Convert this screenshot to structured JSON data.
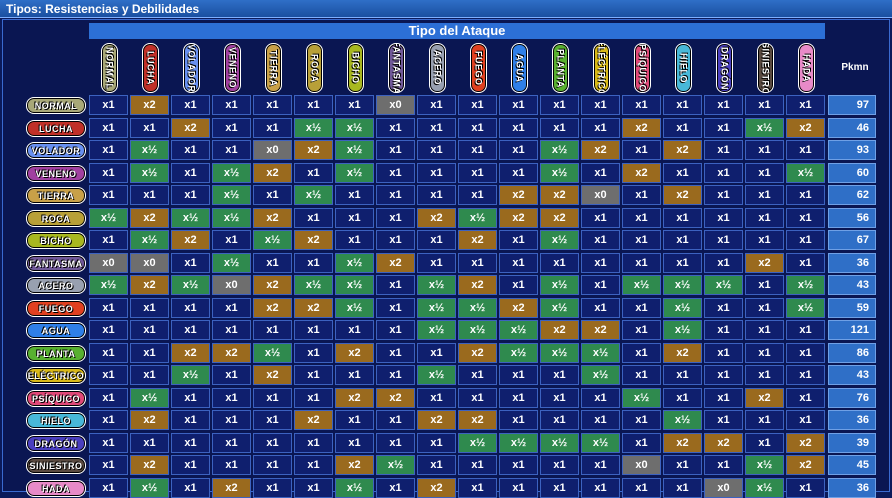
{
  "window": {
    "title": "Tipos: Resistencias y Debilidades"
  },
  "attack_header": "Tipo del Ataque",
  "pkmn_header": "Pkmn",
  "colors": {
    "x2": "#9a6a1e",
    "half": "#2f8a4e",
    "x0": "#6e6e6e",
    "x1": "#0f1f6e"
  },
  "types": [
    {
      "name": "NORMAL",
      "color": "#a8a878"
    },
    {
      "name": "LUCHA",
      "color": "#c03028"
    },
    {
      "name": "VOLADOR",
      "color": "#6890f0"
    },
    {
      "name": "VENENO",
      "color": "#a040a0"
    },
    {
      "name": "TIERRA",
      "color": "#c8a048"
    },
    {
      "name": "ROCA",
      "color": "#b8a038"
    },
    {
      "name": "BICHO",
      "color": "#a8b820"
    },
    {
      "name": "FANTASMA",
      "color": "#705898"
    },
    {
      "name": "ACERO",
      "color": "#98a0b0"
    },
    {
      "name": "FUEGO",
      "color": "#e04020"
    },
    {
      "name": "AGUA",
      "color": "#2f7fe8"
    },
    {
      "name": "PLANTA",
      "color": "#58b030"
    },
    {
      "name": "ELÉCTRICO",
      "color": "#d8b818"
    },
    {
      "name": "PSÍQUICO",
      "color": "#e04878"
    },
    {
      "name": "HIELO",
      "color": "#48b8d8"
    },
    {
      "name": "DRAGÓN",
      "color": "#4a3fbf"
    },
    {
      "name": "SINIESTRO",
      "color": "#5a4a40"
    },
    {
      "name": "HADA",
      "color": "#e88ac8"
    }
  ],
  "rows": [
    {
      "type": "NORMAL",
      "values": [
        "x1",
        "x2",
        "x1",
        "x1",
        "x1",
        "x1",
        "x1",
        "x0",
        "x1",
        "x1",
        "x1",
        "x1",
        "x1",
        "x1",
        "x1",
        "x1",
        "x1",
        "x1"
      ],
      "pkmn": "97"
    },
    {
      "type": "LUCHA",
      "values": [
        "x1",
        "x1",
        "x2",
        "x1",
        "x1",
        "x½",
        "x½",
        "x1",
        "x1",
        "x1",
        "x1",
        "x1",
        "x1",
        "x2",
        "x1",
        "x1",
        "x½",
        "x2"
      ],
      "pkmn": "46"
    },
    {
      "type": "VOLADOR",
      "values": [
        "x1",
        "x½",
        "x1",
        "x1",
        "x0",
        "x2",
        "x½",
        "x1",
        "x1",
        "x1",
        "x1",
        "x½",
        "x2",
        "x1",
        "x2",
        "x1",
        "x1",
        "x1"
      ],
      "pkmn": "93"
    },
    {
      "type": "VENENO",
      "values": [
        "x1",
        "x½",
        "x1",
        "x½",
        "x2",
        "x1",
        "x½",
        "x1",
        "x1",
        "x1",
        "x1",
        "x½",
        "x1",
        "x2",
        "x1",
        "x1",
        "x1",
        "x½"
      ],
      "pkmn": "60"
    },
    {
      "type": "TIERRA",
      "values": [
        "x1",
        "x1",
        "x1",
        "x½",
        "x1",
        "x½",
        "x1",
        "x1",
        "x1",
        "x1",
        "x2",
        "x2",
        "x0",
        "x1",
        "x2",
        "x1",
        "x1",
        "x1"
      ],
      "pkmn": "62"
    },
    {
      "type": "ROCA",
      "values": [
        "x½",
        "x2",
        "x½",
        "x½",
        "x2",
        "x1",
        "x1",
        "x1",
        "x2",
        "x½",
        "x2",
        "x2",
        "x1",
        "x1",
        "x1",
        "x1",
        "x1",
        "x1"
      ],
      "pkmn": "56"
    },
    {
      "type": "BICHO",
      "values": [
        "x1",
        "x½",
        "x2",
        "x1",
        "x½",
        "x2",
        "x1",
        "x1",
        "x1",
        "x2",
        "x1",
        "x½",
        "x1",
        "x1",
        "x1",
        "x1",
        "x1",
        "x1"
      ],
      "pkmn": "67"
    },
    {
      "type": "FANTASMA",
      "values": [
        "x0",
        "x0",
        "x1",
        "x½",
        "x1",
        "x1",
        "x½",
        "x2",
        "x1",
        "x1",
        "x1",
        "x1",
        "x1",
        "x1",
        "x1",
        "x1",
        "x2",
        "x1"
      ],
      "pkmn": "36"
    },
    {
      "type": "ACERO",
      "values": [
        "x½",
        "x2",
        "x½",
        "x0",
        "x2",
        "x½",
        "x½",
        "x1",
        "x½",
        "x2",
        "x1",
        "x½",
        "x1",
        "x½",
        "x½",
        "x½",
        "x1",
        "x½"
      ],
      "pkmn": "43"
    },
    {
      "type": "FUEGO",
      "values": [
        "x1",
        "x1",
        "x1",
        "x1",
        "x2",
        "x2",
        "x½",
        "x1",
        "x½",
        "x½",
        "x2",
        "x½",
        "x1",
        "x1",
        "x½",
        "x1",
        "x1",
        "x½"
      ],
      "pkmn": "59"
    },
    {
      "type": "AGUA",
      "values": [
        "x1",
        "x1",
        "x1",
        "x1",
        "x1",
        "x1",
        "x1",
        "x1",
        "x½",
        "x½",
        "x½",
        "x2",
        "x2",
        "x1",
        "x½",
        "x1",
        "x1",
        "x1"
      ],
      "pkmn": "121"
    },
    {
      "type": "PLANTA",
      "values": [
        "x1",
        "x1",
        "x2",
        "x2",
        "x½",
        "x1",
        "x2",
        "x1",
        "x1",
        "x2",
        "x½",
        "x½",
        "x½",
        "x1",
        "x2",
        "x1",
        "x1",
        "x1"
      ],
      "pkmn": "86"
    },
    {
      "type": "ELÉCTRICO",
      "values": [
        "x1",
        "x1",
        "x½",
        "x1",
        "x2",
        "x1",
        "x1",
        "x1",
        "x½",
        "x1",
        "x1",
        "x1",
        "x½",
        "x1",
        "x1",
        "x1",
        "x1",
        "x1"
      ],
      "pkmn": "43"
    },
    {
      "type": "PSÍQUICO",
      "values": [
        "x1",
        "x½",
        "x1",
        "x1",
        "x1",
        "x1",
        "x2",
        "x2",
        "x1",
        "x1",
        "x1",
        "x1",
        "x1",
        "x½",
        "x1",
        "x1",
        "x2",
        "x1"
      ],
      "pkmn": "76"
    },
    {
      "type": "HIELO",
      "values": [
        "x1",
        "x2",
        "x1",
        "x1",
        "x1",
        "x2",
        "x1",
        "x1",
        "x2",
        "x2",
        "x1",
        "x1",
        "x1",
        "x1",
        "x½",
        "x1",
        "x1",
        "x1"
      ],
      "pkmn": "36"
    },
    {
      "type": "DRAGÓN",
      "values": [
        "x1",
        "x1",
        "x1",
        "x1",
        "x1",
        "x1",
        "x1",
        "x1",
        "x1",
        "x½",
        "x½",
        "x½",
        "x½",
        "x1",
        "x2",
        "x2",
        "x1",
        "x2"
      ],
      "pkmn": "39"
    },
    {
      "type": "SINIESTRO",
      "values": [
        "x1",
        "x2",
        "x1",
        "x1",
        "x1",
        "x1",
        "x2",
        "x½",
        "x1",
        "x1",
        "x1",
        "x1",
        "x1",
        "x0",
        "x1",
        "x1",
        "x½",
        "x2"
      ],
      "pkmn": "45"
    },
    {
      "type": "HADA",
      "values": [
        "x1",
        "x½",
        "x1",
        "x2",
        "x1",
        "x1",
        "x½",
        "x1",
        "x2",
        "x1",
        "x1",
        "x1",
        "x1",
        "x1",
        "x1",
        "x0",
        "x½",
        "x1"
      ],
      "pkmn": "36"
    }
  ]
}
